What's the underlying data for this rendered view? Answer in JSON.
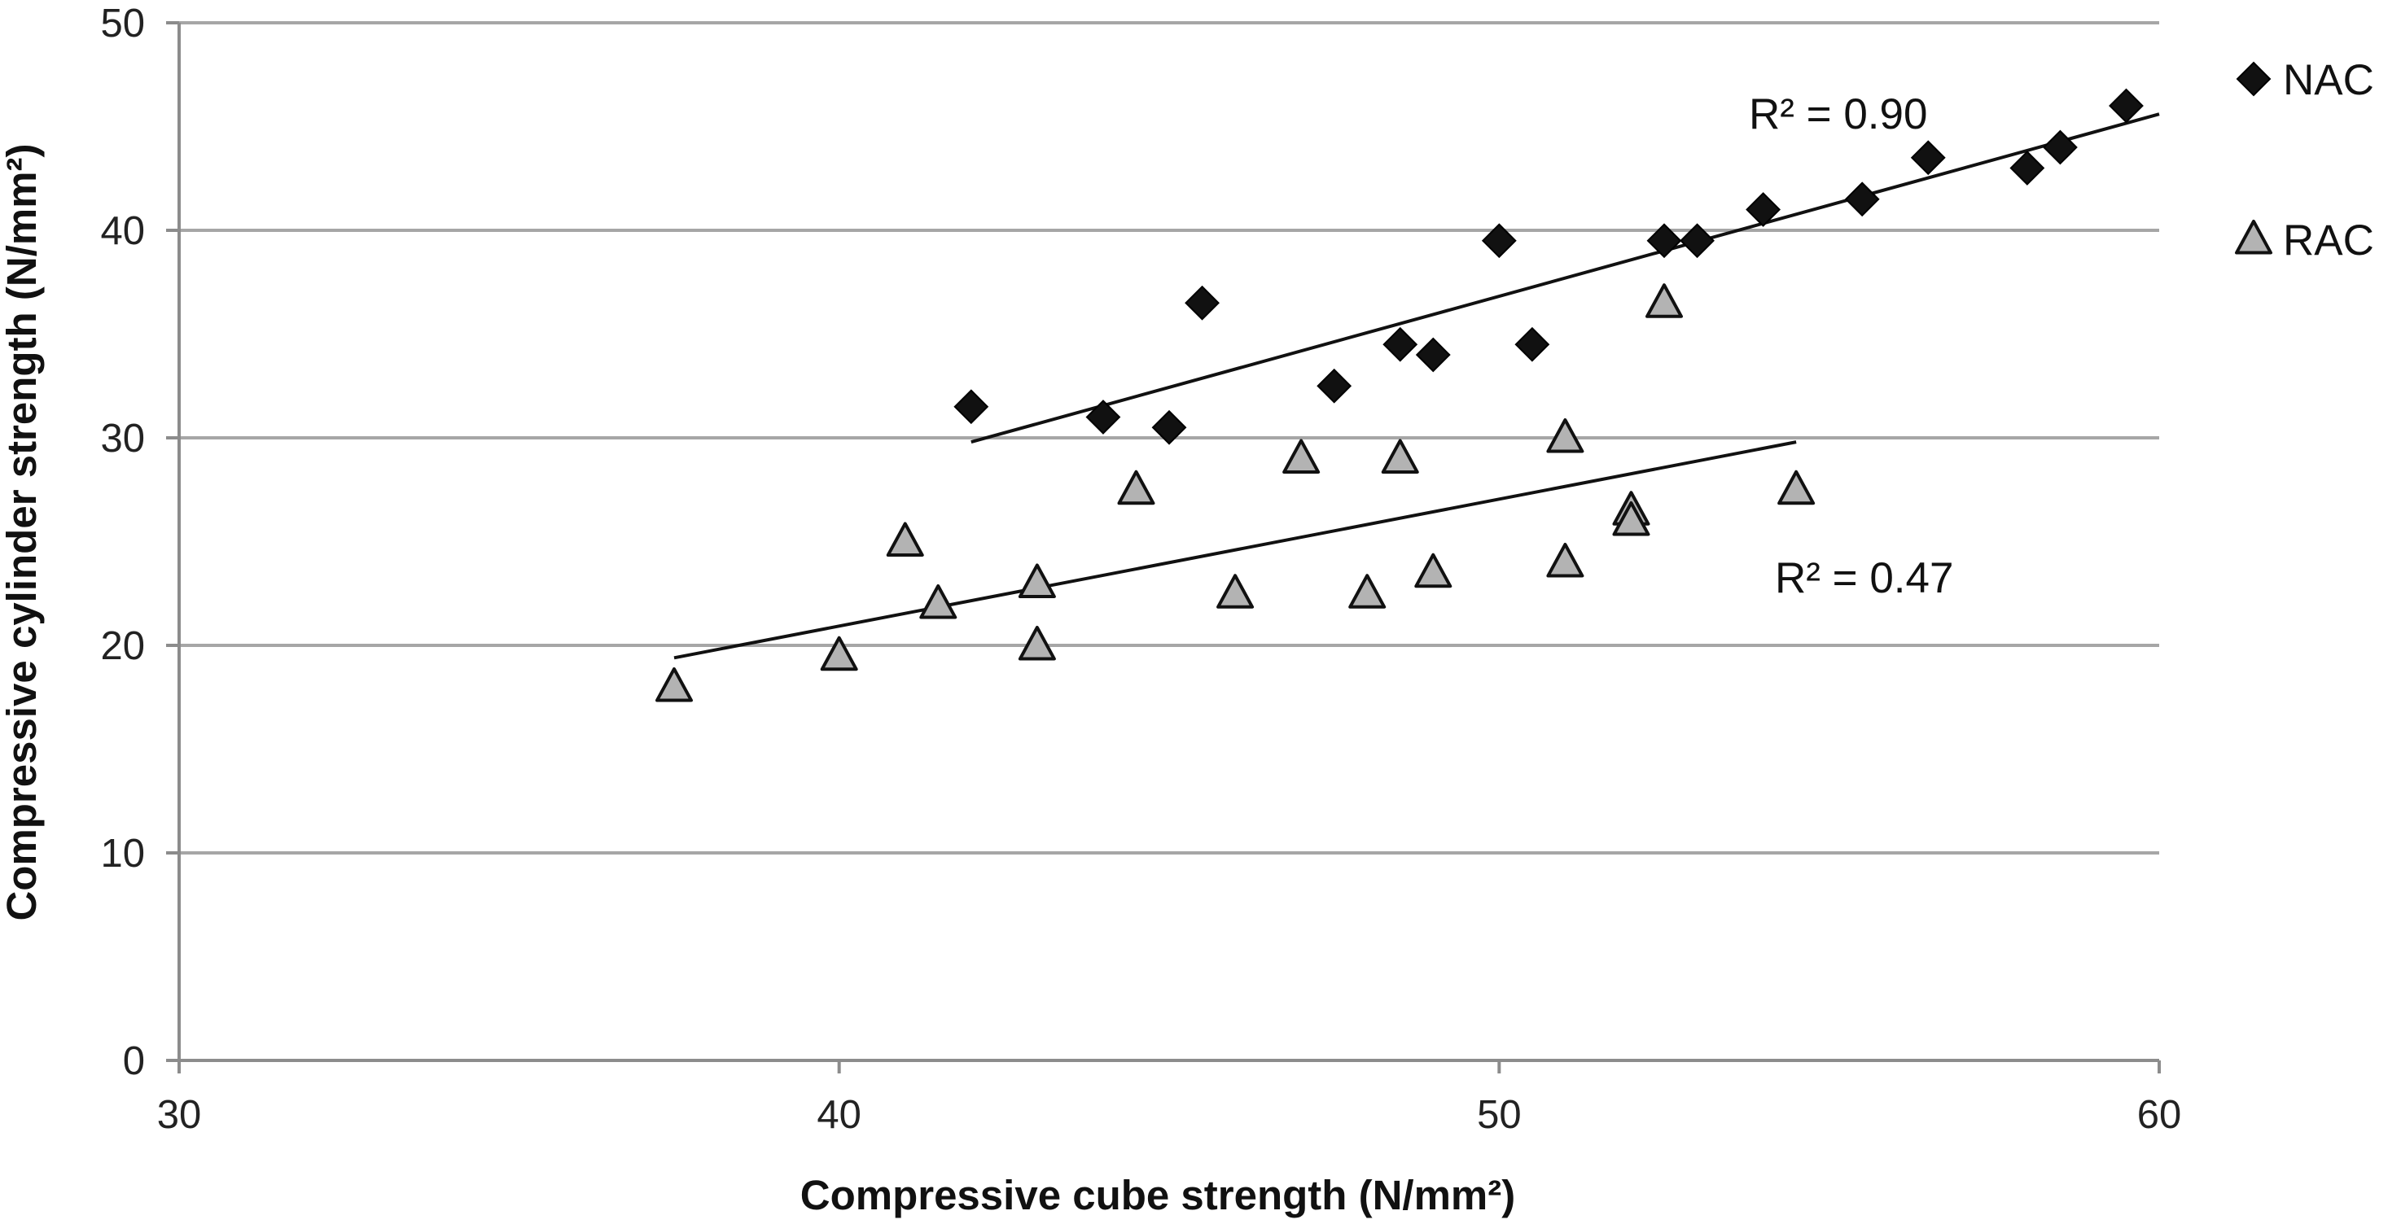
{
  "chart_data": {
    "type": "scatter",
    "title": "",
    "xlabel": "Compressive cube strength (N/mm²)",
    "ylabel": "Compressive cylinder strength (N/mm²)",
    "xlim": [
      30,
      60
    ],
    "ylim": [
      0,
      50
    ],
    "xticks": [
      "30",
      "40",
      "50",
      "60"
    ],
    "yticks": [
      "0",
      "10",
      "20",
      "30",
      "40",
      "50"
    ],
    "grid": "horizontal",
    "legend": "right",
    "series": [
      {
        "name": "NAC",
        "marker": "diamond",
        "color": "#111111",
        "points": [
          [
            42,
            31.5
          ],
          [
            44,
            31
          ],
          [
            45,
            30.5
          ],
          [
            45.5,
            36.5
          ],
          [
            47.5,
            32.5
          ],
          [
            48.5,
            34.5
          ],
          [
            49,
            34
          ],
          [
            50,
            39.5
          ],
          [
            50.5,
            34.5
          ],
          [
            52.5,
            39.5
          ],
          [
            53,
            39.5
          ],
          [
            54,
            41
          ],
          [
            55.5,
            41.5
          ],
          [
            56.5,
            43.5
          ],
          [
            58,
            43
          ],
          [
            58.5,
            44
          ],
          [
            59.5,
            46
          ]
        ],
        "trendline": {
          "x": [
            42,
            60
          ],
          "y": [
            29.8,
            45.6
          ]
        },
        "r2_label": "R² = 0.90"
      },
      {
        "name": "RAC",
        "marker": "triangle",
        "color": "#b3b3b3",
        "points": [
          [
            37.5,
            18
          ],
          [
            40,
            19.5
          ],
          [
            41,
            25
          ],
          [
            41.5,
            22
          ],
          [
            43,
            23
          ],
          [
            43,
            20
          ],
          [
            44.5,
            27.5
          ],
          [
            46,
            22.5
          ],
          [
            47,
            29
          ],
          [
            48,
            22.5
          ],
          [
            48.5,
            29
          ],
          [
            49,
            23.5
          ],
          [
            51,
            30
          ],
          [
            51,
            24
          ],
          [
            52,
            26.5
          ],
          [
            52,
            26
          ],
          [
            52.5,
            36.5
          ],
          [
            54.5,
            27.5
          ]
        ],
        "trendline": {
          "x": [
            37.5,
            54.5
          ],
          "y": [
            19.4,
            29.8
          ]
        },
        "r2_label": "R² = 0.47"
      }
    ]
  }
}
